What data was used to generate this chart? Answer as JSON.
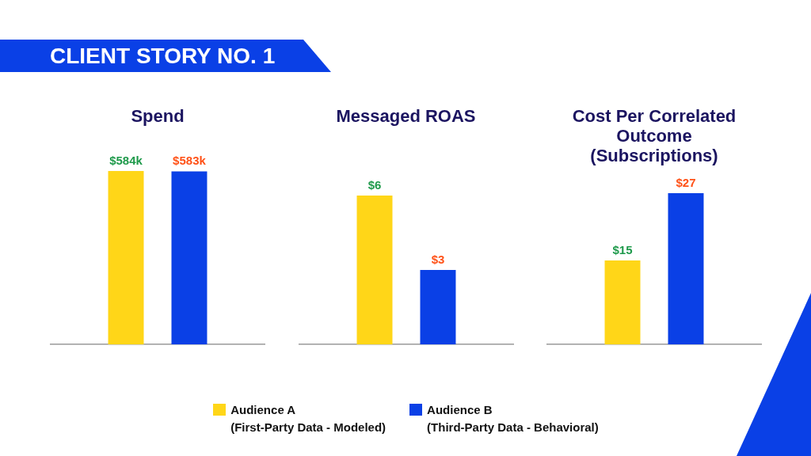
{
  "chart_data": [
    {
      "type": "other",
      "title": "CLIENT STORY NO. 1"
    },
    {
      "type": "bar",
      "title": "Spend",
      "categories": [
        null
      ],
      "series": [
        {
          "name": "Audience A\n(First-Party Data - Modeled)",
          "color": "#ffd618",
          "values": [
            584
          ],
          "value_labels": [
            "$584k"
          ]
        },
        {
          "name": "Audience B\n(Third-Party Data - Behavioral)",
          "color": "#0a40e6",
          "values": [
            583
          ],
          "value_labels": [
            "$583k"
          ]
        }
      ],
      "tick_labels": false,
      "legend": "bottom"
    },
    {
      "type": "bar",
      "title": "Messaged ROAS",
      "categories": [
        null
      ],
      "series": [
        {
          "color": "#ffd618",
          "values": [
            6
          ],
          "value_labels": [
            "$6"
          ]
        },
        {
          "color": "#0a40e6",
          "values": [
            3
          ],
          "value_labels": [
            "$3"
          ]
        }
      ],
      "tick_labels": false
    },
    {
      "type": "bar",
      "title": "Cost Per Correlated Outcome (Subscriptions)",
      "categories": [
        null
      ],
      "series": [
        {
          "color": "#ffd618",
          "values": [
            15
          ],
          "value_labels": [
            "$15"
          ]
        },
        {
          "color": "#0a40e6",
          "values": [
            27
          ],
          "value_labels": [
            "$27"
          ]
        }
      ],
      "tick_labels": false
    }
  ]
}
